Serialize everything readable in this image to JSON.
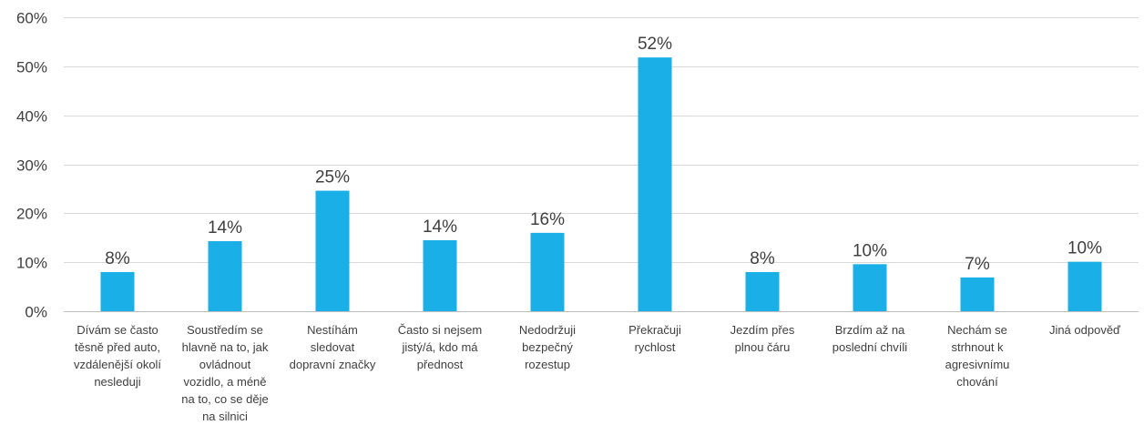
{
  "chart_data": {
    "type": "bar",
    "title": "",
    "xlabel": "",
    "ylabel": "",
    "ylim": [
      0,
      60
    ],
    "yticks": [
      0,
      10,
      20,
      30,
      40,
      50,
      60
    ],
    "ytick_labels": [
      "0%",
      "10%",
      "20%",
      "30%",
      "40%",
      "50%",
      "60%"
    ],
    "grid": true,
    "bar_color": "#1aafe6",
    "categories": [
      "Dívám se často\ntěsně před auto,\nvzdálenější okolí\nnesleduji",
      "Soustředím se\nhlavně na to, jak\novládnout\nvozidlo, a méně\nna to, co se děje\nna silnici",
      "Nestíhám\nsledovat\ndopravní značky",
      "Často si nejsem\njistý/á, kdo má\npřednost",
      "Nedodržuji\nbezpečný\nrozestup",
      "Překračuji\nrychlost",
      "Jezdím přes\nplnou čáru",
      "Brzdím až na\nposlední chvíli",
      "Nechám se\nstrhnout k\nagresivnímu\nchování",
      "Jiná odpověď"
    ],
    "values": [
      8,
      14.3,
      24.6,
      14.5,
      16,
      51.8,
      8,
      9.6,
      6.9,
      10.1
    ],
    "value_labels": [
      "8%",
      "14%",
      "25%",
      "14%",
      "16%",
      "52%",
      "8%",
      "10%",
      "7%",
      "10%"
    ]
  }
}
